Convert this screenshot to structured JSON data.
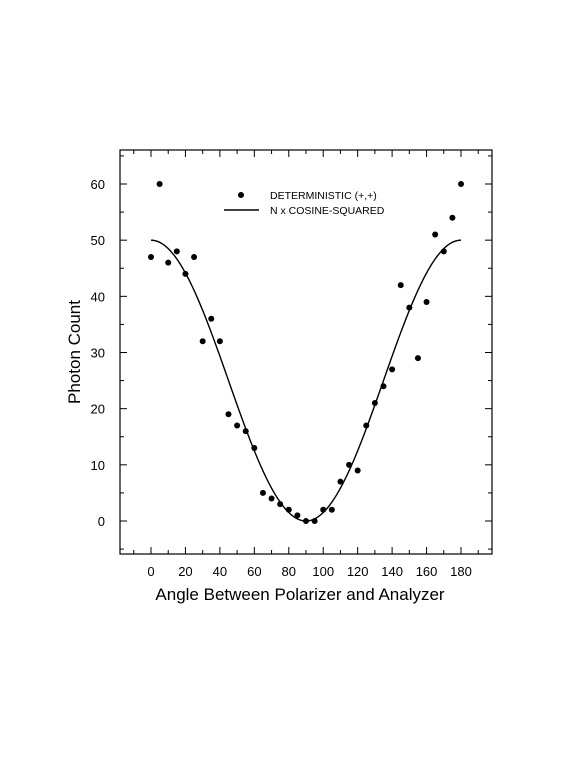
{
  "chart_data": {
    "type": "scatter",
    "title": "",
    "xlabel": "Angle Between Polarizer and Analyzer",
    "ylabel": "Photon Count",
    "xlim": [
      -17,
      199
    ],
    "ylim": [
      -6,
      66
    ],
    "xticks": [
      0,
      20,
      40,
      60,
      80,
      100,
      120,
      140,
      160,
      180
    ],
    "yticks": [
      0,
      10,
      20,
      30,
      40,
      50,
      60
    ],
    "grid": false,
    "legend_position": "top-center",
    "series": [
      {
        "name": "DETERMINISTIC (+,+)",
        "kind": "scatter",
        "x": [
          0,
          5,
          10,
          15,
          20,
          25,
          30,
          35,
          40,
          45,
          50,
          55,
          60,
          65,
          70,
          75,
          80,
          85,
          90,
          95,
          100,
          105,
          110,
          115,
          120,
          125,
          130,
          135,
          140,
          145,
          150,
          155,
          160,
          165,
          170,
          175,
          180
        ],
        "y": [
          47,
          60,
          46,
          48,
          44,
          47,
          32,
          36,
          32,
          19,
          17,
          16,
          13,
          5,
          4,
          3,
          2,
          1,
          0,
          0,
          2,
          2,
          7,
          10,
          9,
          17,
          21,
          24,
          27,
          42,
          38,
          29,
          39,
          51,
          48,
          54,
          60
        ]
      },
      {
        "name": "N x COSINE-SQUARED",
        "kind": "line",
        "function": "50*cos^2(x)",
        "amplitude": 50,
        "x_range": [
          0,
          180
        ]
      }
    ]
  }
}
